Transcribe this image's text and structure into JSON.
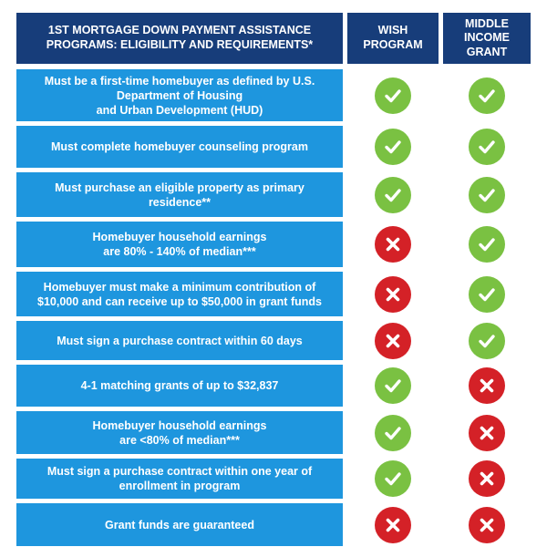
{
  "header": {
    "criteria_label": "1ST MORTGAGE DOWN PAYMENT ASSISTANCE PROGRAMS: ELIGIBILITY AND REQUIREMENTS*",
    "wish_label": "WISH PROGRAM",
    "mig_label": "MIDDLE INCOME GRANT"
  },
  "colors": {
    "header_bg": "#173d7a",
    "row_bg": "#1e96de",
    "check": "#7ac142",
    "cross": "#d42127"
  },
  "icons": {
    "yes": "checkmark-icon",
    "no": "x-mark-icon"
  },
  "rows": [
    {
      "text": "Must be a first-time homebuyer as defined by U.S. Department of Housing\nand Urban Development (HUD)",
      "wish": "yes",
      "mig": "yes"
    },
    {
      "text": "Must complete homebuyer counseling program",
      "wish": "yes",
      "mig": "yes"
    },
    {
      "text": "Must purchase an eligible property as primary residence**",
      "wish": "yes",
      "mig": "yes"
    },
    {
      "text": "Homebuyer household earnings\nare 80% - 140% of median***",
      "wish": "no",
      "mig": "yes"
    },
    {
      "text": "Homebuyer must make a minimum contribution of $10,000 and can receive up to $50,000 in grant funds",
      "wish": "no",
      "mig": "yes"
    },
    {
      "text": "Must sign a purchase contract within 60 days",
      "wish": "no",
      "mig": "yes"
    },
    {
      "text": "4-1 matching grants of up to $32,837",
      "wish": "yes",
      "mig": "no"
    },
    {
      "text": "Homebuyer household earnings\nare <80% of median***",
      "wish": "yes",
      "mig": "no"
    },
    {
      "text": "Must sign a purchase contract within one year of enrollment in program",
      "wish": "yes",
      "mig": "no"
    },
    {
      "text": "Grant funds are guaranteed",
      "wish": "no",
      "mig": "no"
    }
  ]
}
